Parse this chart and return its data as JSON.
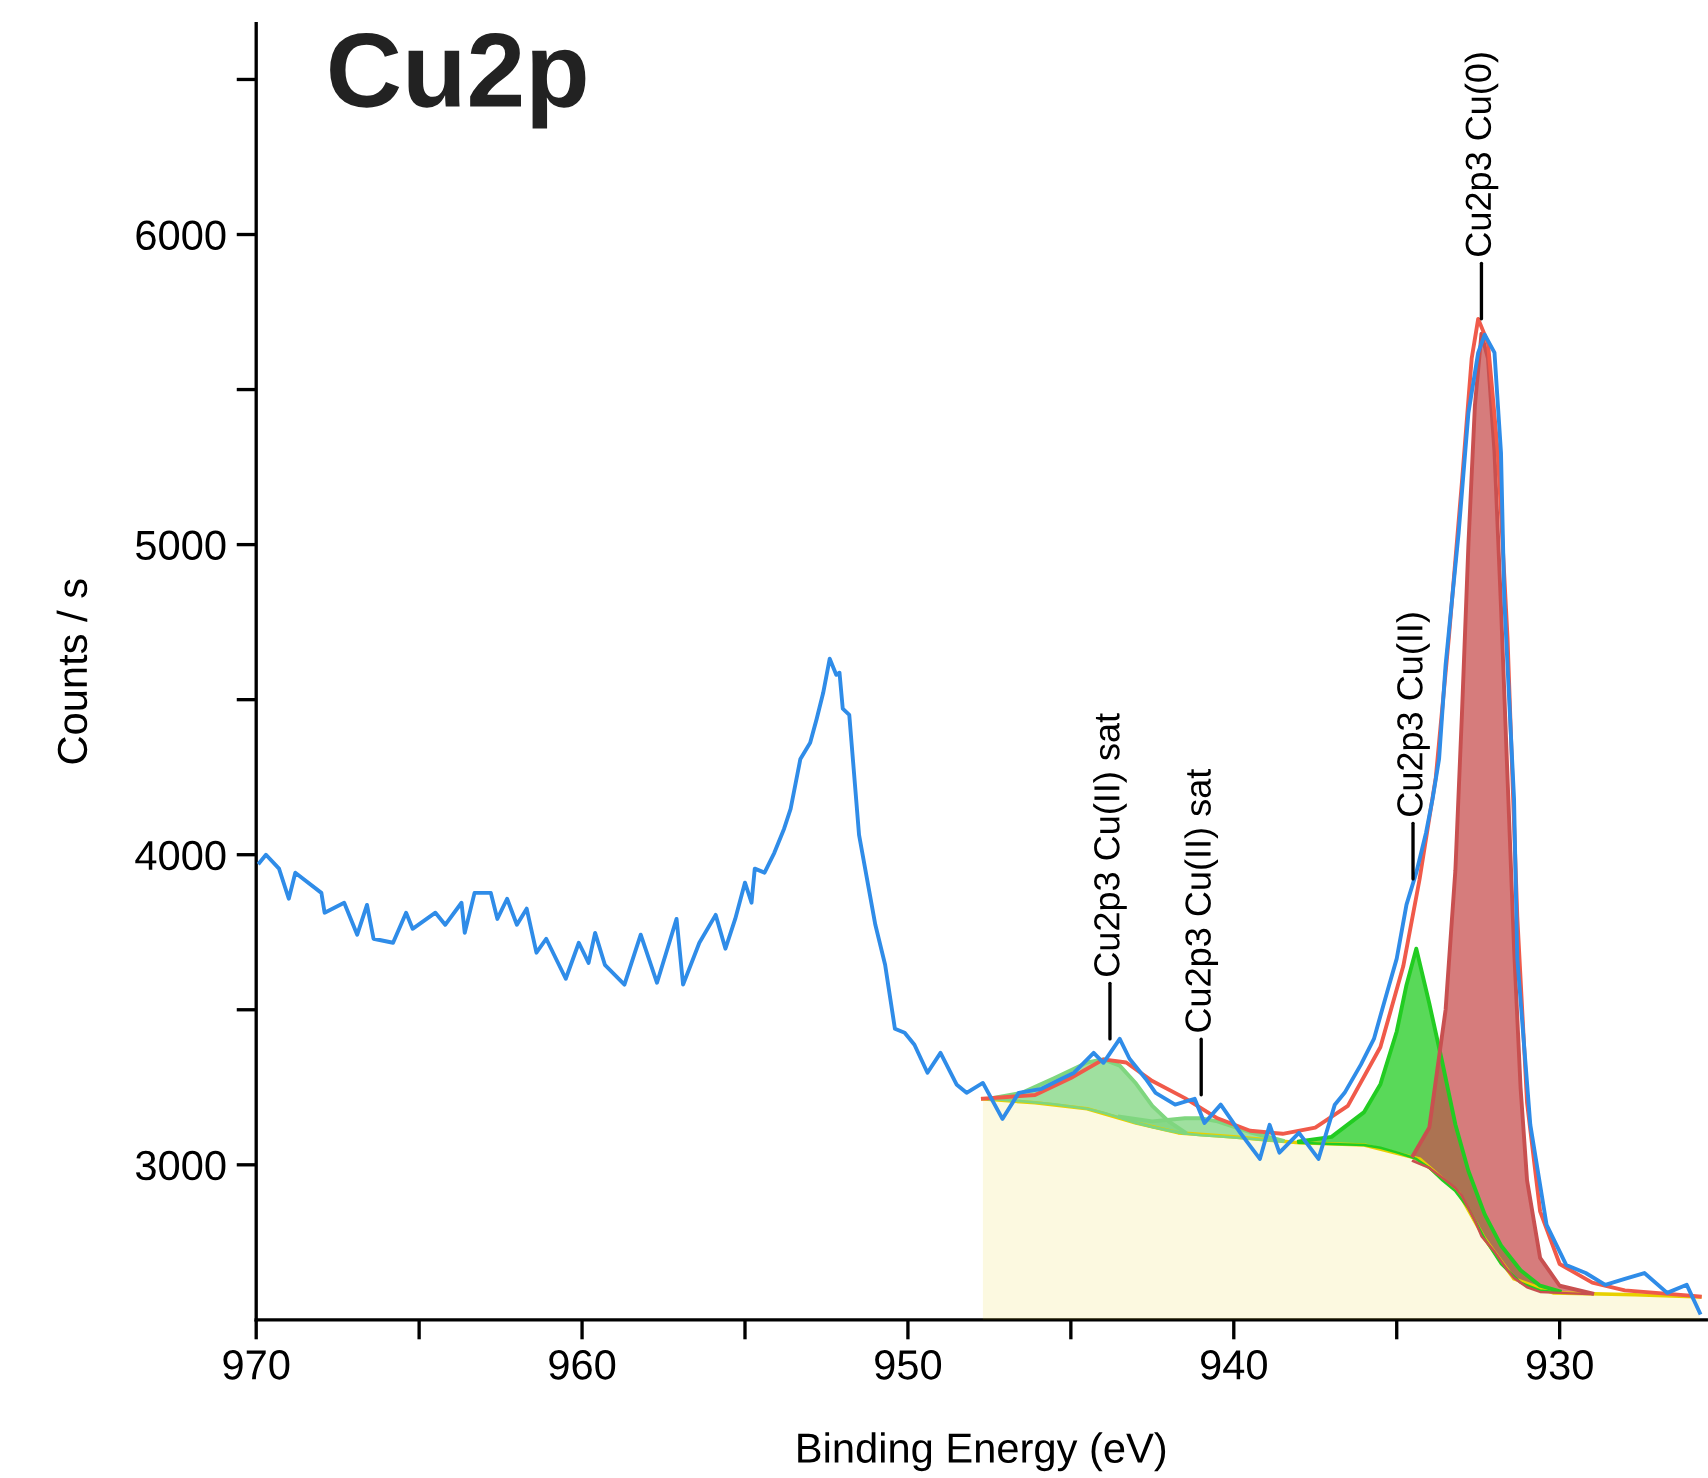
{
  "chart_data": {
    "type": "line",
    "title": "Cu2p",
    "xlabel": "Binding Energy (eV)",
    "ylabel": "Counts / s",
    "xlim": [
      970,
      925.5
    ],
    "ylim": [
      2500,
      6680
    ],
    "xticks": [
      970,
      {
        "value": 965,
        "label": null
      },
      960,
      {
        "value": 955,
        "label": null
      },
      950,
      {
        "value": 945,
        "label": null
      },
      940,
      {
        "value": 935,
        "label": null
      },
      930
    ],
    "yticks": [
      3000,
      {
        "value": 3500,
        "label": null
      },
      4000,
      {
        "value": 4500,
        "label": null
      },
      5000,
      {
        "value": 5500,
        "label": null
      },
      6000,
      {
        "value": 6500,
        "label": null
      }
    ],
    "grid": false,
    "legend": false,
    "marker": "none",
    "line_style": "solid",
    "series": [
      {
        "color": "#7fd67f",
        "x": [
          947.5,
          946.5,
          945.5,
          944.5,
          944.0,
          943.5,
          943.0,
          942.5,
          942.0,
          941.5
        ],
        "lower": [
          3213,
          3205,
          3195,
          3181,
          3168,
          3152,
          3135,
          3122,
          3110,
          3101
        ],
        "upper": [
          3213,
          3232,
          3280,
          3330,
          3340,
          3320,
          3262,
          3190,
          3140,
          3105
        ],
        "values": [
          3213,
          3232,
          3280,
          3330,
          3340,
          3320,
          3262,
          3190,
          3140,
          3105
        ]
      },
      {
        "color": "#7fd67f",
        "x": [
          943.5,
          942.5,
          941.5,
          941.0,
          940.5,
          939.5,
          938.5
        ],
        "lower": [
          3152,
          3122,
          3101,
          3095,
          3092,
          3084,
          3075
        ],
        "upper": [
          3155,
          3140,
          3150,
          3150,
          3140,
          3105,
          3078
        ],
        "values": [
          3155,
          3140,
          3150,
          3150,
          3140,
          3105,
          3078
        ]
      },
      {
        "color": "#22cc22",
        "x": [
          938.0,
          937.0,
          936.0,
          935.5,
          935.0,
          934.7,
          934.4,
          934.0,
          933.6,
          933.2,
          932.8,
          932.3,
          931.8,
          931.2,
          930.6,
          930.0
        ],
        "lower": [
          3071,
          3067,
          3064,
          3055,
          3040,
          3030,
          3019,
          2990,
          2950,
          2915,
          2860,
          2761,
          2680,
          2620,
          2595,
          2588
        ],
        "upper": [
          3075,
          3090,
          3170,
          3260,
          3430,
          3580,
          3697,
          3520,
          3330,
          3130,
          2980,
          2840,
          2740,
          2660,
          2610,
          2592
        ],
        "values": [
          3075,
          3090,
          3170,
          3260,
          3430,
          3580,
          3697,
          3520,
          3330,
          3130,
          2980,
          2840,
          2740,
          2660,
          2610,
          2592
        ]
      },
      {
        "color": "#c85050",
        "x": [
          934.5,
          934.0,
          933.5,
          933.2,
          933.0,
          932.8,
          932.6,
          932.4,
          932.2,
          932.0,
          931.8,
          931.6,
          931.4,
          931.2,
          931.0,
          930.6,
          930.0,
          929.0
        ],
        "lower": [
          3012,
          2990,
          2950,
          2925,
          2900,
          2860,
          2820,
          2770,
          2745,
          2720,
          2690,
          2660,
          2635,
          2620,
          2605,
          2590,
          2587,
          2583
        ],
        "upper": [
          3030,
          3120,
          3500,
          3950,
          4450,
          5000,
          5450,
          5680,
          5600,
          5300,
          4800,
          4250,
          3700,
          3250,
          2950,
          2700,
          2610,
          2585
        ],
        "values": [
          3030,
          3120,
          3500,
          3950,
          4450,
          5000,
          5450,
          5680,
          5600,
          5300,
          4800,
          4250,
          3700,
          3250,
          2950,
          2700,
          2610,
          2585
        ]
      },
      {
        "type": "area",
        "color": "#e8d000",
        "x": [
          947.7,
          946.1,
          944.5,
          943.0,
          941.7,
          940.0,
          938.0,
          936.0,
          934.3,
          933.1,
          932.3,
          931.4,
          930.2,
          927.7,
          925.7
        ],
        "values": [
          3213,
          3200,
          3181,
          3135,
          3103,
          3090,
          3071,
          3064,
          3019,
          2910,
          2761,
          2632,
          2587,
          2581,
          2574
        ]
      },
      {
        "type": "line",
        "color": "#f05a4a",
        "x": [
          947.7,
          946.1,
          945.0,
          944.0,
          943.3,
          942.5,
          941.5,
          940.5,
          939.5,
          938.5,
          937.5,
          936.5,
          935.5,
          934.8,
          934.3,
          933.8,
          933.4,
          933.0,
          932.7,
          932.5,
          932.2,
          931.9,
          931.6,
          931.3,
          931.0,
          930.6,
          930.0,
          929.0,
          928.0,
          926.0,
          925.7
        ],
        "values": [
          3213,
          3225,
          3280,
          3340,
          3330,
          3270,
          3215,
          3150,
          3110,
          3100,
          3120,
          3190,
          3380,
          3640,
          3920,
          4250,
          4700,
          5200,
          5600,
          5728,
          5650,
          5300,
          4700,
          3800,
          3200,
          2850,
          2680,
          2620,
          2595,
          2578,
          2575
        ]
      },
      {
        "type": "line",
        "color": "#2f8ce8",
        "x": [
          969.9,
          969.7,
          969.3,
          969.0,
          968.8,
          968.0,
          967.9,
          967.3,
          966.9,
          966.6,
          966.4,
          965.8,
          965.4,
          965.2,
          964.5,
          964.2,
          963.7,
          963.6,
          963.3,
          962.8,
          962.6,
          962.3,
          962.0,
          961.7,
          961.4,
          961.1,
          960.5,
          960.1,
          959.8,
          959.6,
          959.3,
          958.7,
          958.2,
          957.7,
          957.1,
          956.9,
          956.4,
          955.9,
          955.6,
          955.3,
          955.0,
          954.8,
          954.7,
          954.4,
          954.1,
          953.8,
          953.6,
          953.3,
          953.0,
          952.8,
          952.6,
          952.4,
          952.2,
          952.1,
          952.0,
          951.8,
          951.5,
          951.0,
          950.7,
          950.4,
          950.1,
          949.8,
          949.4,
          949.0,
          948.5,
          948.2,
          947.7,
          947.1,
          946.6,
          945.9,
          945.3,
          944.9,
          944.3,
          944.0,
          943.5,
          943.2,
          942.7,
          942.4,
          941.8,
          941.2,
          940.9,
          940.4,
          939.8,
          939.2,
          938.9,
          938.6,
          938.0,
          937.4,
          936.9,
          936.6,
          936.1,
          935.7,
          935.3,
          935.0,
          934.7,
          934.4,
          934.1,
          933.9,
          933.7,
          933.5,
          933.1,
          932.8,
          932.5,
          932.3,
          932.0,
          931.8,
          931.7,
          931.4,
          931.3,
          930.9,
          930.4,
          929.8,
          929.2,
          928.6,
          928.0,
          927.4,
          926.7,
          926.1,
          925.7
        ],
        "values": [
          3974,
          4000,
          3955,
          3858,
          3942,
          3877,
          3813,
          3845,
          3742,
          3838,
          3729,
          3716,
          3813,
          3761,
          3813,
          3774,
          3845,
          3748,
          3877,
          3877,
          3793,
          3858,
          3774,
          3826,
          3684,
          3729,
          3600,
          3716,
          3651,
          3748,
          3645,
          3581,
          3742,
          3587,
          3793,
          3581,
          3716,
          3806,
          3697,
          3793,
          3910,
          3845,
          3955,
          3942,
          4006,
          4084,
          4148,
          4309,
          4361,
          4438,
          4522,
          4632,
          4580,
          4587,
          4471,
          4451,
          4064,
          3774,
          3645,
          3439,
          3426,
          3387,
          3297,
          3361,
          3258,
          3232,
          3264,
          3148,
          3232,
          3245,
          3277,
          3297,
          3361,
          3329,
          3406,
          3342,
          3277,
          3232,
          3194,
          3213,
          3135,
          3194,
          3103,
          3019,
          3129,
          3039,
          3103,
          3019,
          3194,
          3232,
          3323,
          3406,
          3555,
          3665,
          3839,
          3942,
          4071,
          4180,
          4309,
          4612,
          5038,
          5425,
          5619,
          5677,
          5619,
          5296,
          4825,
          4180,
          3665,
          3129,
          2806,
          2677,
          2651,
          2613,
          2632,
          2651,
          2587,
          2613,
          2523
        ]
      }
    ],
    "annotations": [
      {
        "text": "Cu2p3 Cu(II) sat",
        "x": 943.8,
        "y": 3406
      },
      {
        "text": "Cu2p3 Cu(II) sat",
        "x": 941.0,
        "y": 3226
      },
      {
        "text": "Cu2p3 Cu(II)",
        "x": 934.5,
        "y": 3922
      },
      {
        "text": "Cu2p3 Cu(0)",
        "x": 932.4,
        "y": 5728
      }
    ]
  }
}
